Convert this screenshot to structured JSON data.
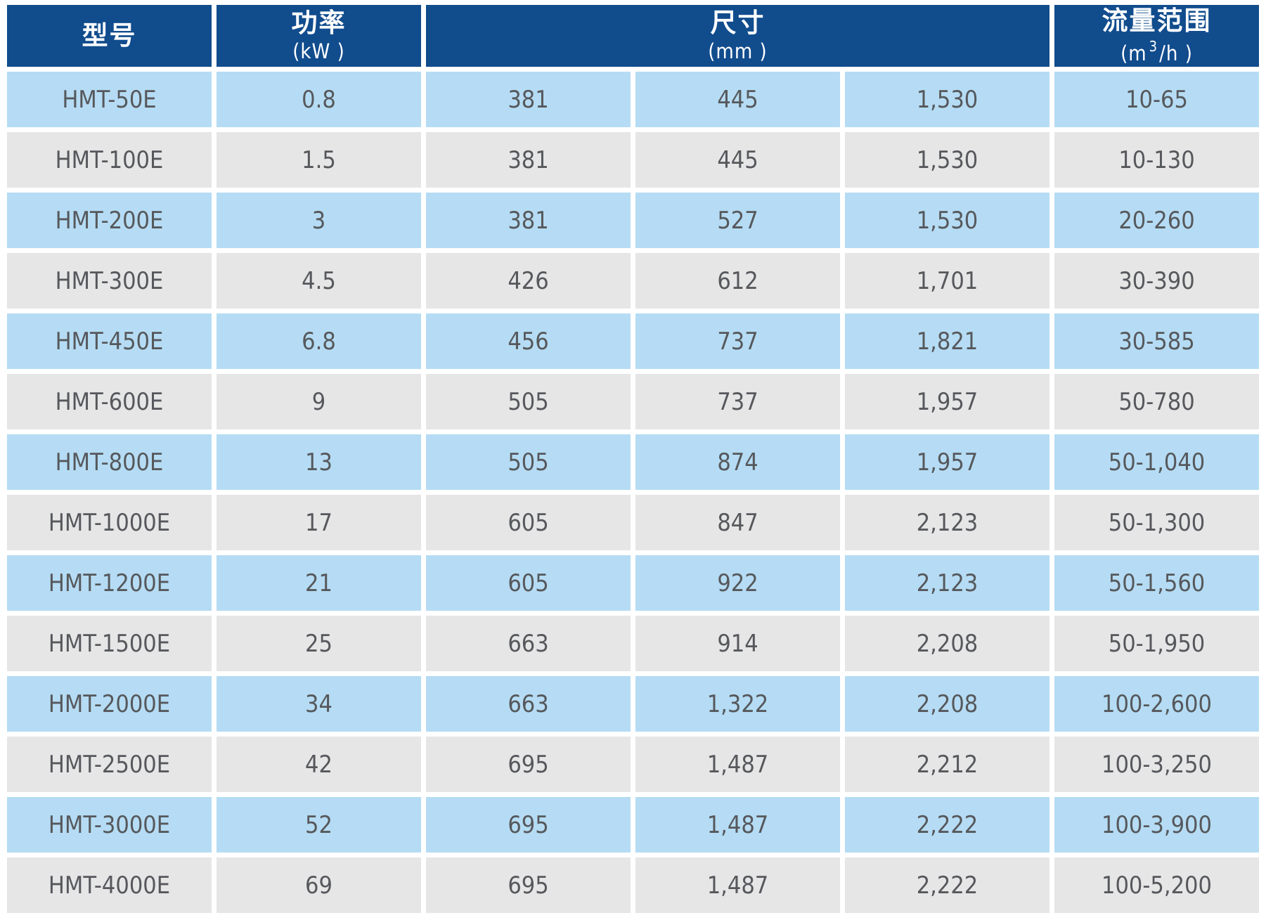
{
  "colors": {
    "header_bg": "#114c8d",
    "header_text": "#ffffff",
    "row_blue": "#b5dcf4",
    "row_gray": "#e6e6e7",
    "cell_text": "#56585c",
    "grid_gap": "#ffffff"
  },
  "table": {
    "header": {
      "model": {
        "title": "型号"
      },
      "power": {
        "title": "功率",
        "unit": "(kW )"
      },
      "dimensions": {
        "title": "尺寸",
        "unit": "(mm )",
        "span": 3
      },
      "flow": {
        "title": "流量范围",
        "unit_prefix": "(m",
        "unit_sup": "3",
        "unit_suffix": "/h )"
      }
    },
    "rows": [
      {
        "model": "HMT-50E",
        "power": "0.8",
        "dims": [
          "381",
          "445",
          "1,530"
        ],
        "flow": "10-65",
        "tone": "blue"
      },
      {
        "model": "HMT-100E",
        "power": "1.5",
        "dims": [
          "381",
          "445",
          "1,530"
        ],
        "flow": "10-130",
        "tone": "gray"
      },
      {
        "model": "HMT-200E",
        "power": "3",
        "dims": [
          "381",
          "527",
          "1,530"
        ],
        "flow": "20-260",
        "tone": "blue"
      },
      {
        "model": "HMT-300E",
        "power": "4.5",
        "dims": [
          "426",
          "612",
          "1,701"
        ],
        "flow": "30-390",
        "tone": "gray"
      },
      {
        "model": "HMT-450E",
        "power": "6.8",
        "dims": [
          "456",
          "737",
          "1,821"
        ],
        "flow": "30-585",
        "tone": "blue"
      },
      {
        "model": "HMT-600E",
        "power": "9",
        "dims": [
          "505",
          "737",
          "1,957"
        ],
        "flow": "50-780",
        "tone": "gray"
      },
      {
        "model": "HMT-800E",
        "power": "13",
        "dims": [
          "505",
          "874",
          "1,957"
        ],
        "flow": "50-1,040",
        "tone": "blue"
      },
      {
        "model": "HMT-1000E",
        "power": "17",
        "dims": [
          "605",
          "847",
          "2,123"
        ],
        "flow": "50-1,300",
        "tone": "gray"
      },
      {
        "model": "HMT-1200E",
        "power": "21",
        "dims": [
          "605",
          "922",
          "2,123"
        ],
        "flow": "50-1,560",
        "tone": "blue"
      },
      {
        "model": "HMT-1500E",
        "power": "25",
        "dims": [
          "663",
          "914",
          "2,208"
        ],
        "flow": "50-1,950",
        "tone": "gray"
      },
      {
        "model": "HMT-2000E",
        "power": "34",
        "dims": [
          "663",
          "1,322",
          "2,208"
        ],
        "flow": "100-2,600",
        "tone": "blue"
      },
      {
        "model": "HMT-2500E",
        "power": "42",
        "dims": [
          "695",
          "1,487",
          "2,212"
        ],
        "flow": "100-3,250",
        "tone": "gray"
      },
      {
        "model": "HMT-3000E",
        "power": "52",
        "dims": [
          "695",
          "1,487",
          "2,222"
        ],
        "flow": "100-3,900",
        "tone": "blue"
      },
      {
        "model": "HMT-4000E",
        "power": "69",
        "dims": [
          "695",
          "1,487",
          "2,222"
        ],
        "flow": "100-5,200",
        "tone": "gray"
      }
    ]
  },
  "chart_data": {
    "type": "table",
    "title": "",
    "columns": [
      "型号",
      "功率 (kW)",
      "尺寸 (mm) 1",
      "尺寸 (mm) 2",
      "尺寸 (mm) 3",
      "流量范围 (m³/h)"
    ],
    "rows": [
      [
        "HMT-50E",
        "0.8",
        "381",
        "445",
        "1,530",
        "10-65"
      ],
      [
        "HMT-100E",
        "1.5",
        "381",
        "445",
        "1,530",
        "10-130"
      ],
      [
        "HMT-200E",
        "3",
        "381",
        "527",
        "1,530",
        "20-260"
      ],
      [
        "HMT-300E",
        "4.5",
        "426",
        "612",
        "1,701",
        "30-390"
      ],
      [
        "HMT-450E",
        "6.8",
        "456",
        "737",
        "1,821",
        "30-585"
      ],
      [
        "HMT-600E",
        "9",
        "505",
        "737",
        "1,957",
        "50-780"
      ],
      [
        "HMT-800E",
        "13",
        "505",
        "874",
        "1,957",
        "50-1,040"
      ],
      [
        "HMT-1000E",
        "17",
        "605",
        "847",
        "2,123",
        "50-1,300"
      ],
      [
        "HMT-1200E",
        "21",
        "605",
        "922",
        "2,123",
        "50-1,560"
      ],
      [
        "HMT-1500E",
        "25",
        "663",
        "914",
        "2,208",
        "50-1,950"
      ],
      [
        "HMT-2000E",
        "34",
        "663",
        "1,322",
        "2,208",
        "100-2,600"
      ],
      [
        "HMT-2500E",
        "42",
        "695",
        "1,487",
        "2,212",
        "100-3,250"
      ],
      [
        "HMT-3000E",
        "52",
        "695",
        "1,487",
        "2,222",
        "100-3,900"
      ],
      [
        "HMT-4000E",
        "69",
        "695",
        "1,487",
        "2,222",
        "100-5,200"
      ]
    ]
  }
}
